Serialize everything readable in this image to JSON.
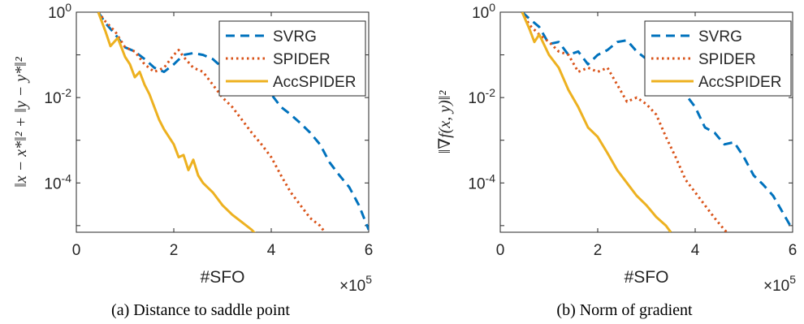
{
  "chart_data": [
    {
      "type": "line",
      "caption": "(a) Distance to saddle point",
      "xlabel": "#SFO",
      "x_multiplier": "×10",
      "x_multiplier_exp": "5",
      "ylabel": "‖x − x*‖² + ‖y − y*‖²",
      "xlim": [
        0,
        6
      ],
      "ylim": [
        7e-06,
        1
      ],
      "yscale": "log",
      "xticks": [
        "0",
        "2",
        "4",
        "6"
      ],
      "yticks": [
        {
          "base": "10",
          "exp": "-4",
          "value": 0.0001
        },
        {
          "base": "10",
          "exp": "-2",
          "value": 0.01
        },
        {
          "base": "10",
          "exp": "0",
          "value": 1
        }
      ],
      "legend_position": "top-right",
      "series": [
        {
          "name": "SVRG",
          "color": "#0072BD",
          "style": "dashed",
          "x": [
            0.45,
            0.6,
            0.8,
            1.0,
            1.2,
            1.4,
            1.6,
            1.8,
            2.0,
            2.2,
            2.4,
            2.6,
            2.8,
            3.0,
            3.2,
            3.4,
            3.6,
            3.8,
            4.0,
            4.2,
            4.4,
            4.6,
            4.8,
            5.0,
            5.2,
            5.4,
            5.6,
            5.8,
            6.0
          ],
          "y": [
            1.0,
            0.55,
            0.3,
            0.15,
            0.12,
            0.08,
            0.05,
            0.04,
            0.06,
            0.1,
            0.11,
            0.1,
            0.08,
            0.05,
            0.04,
            0.035,
            0.03,
            0.02,
            0.012,
            0.006,
            0.004,
            0.0025,
            0.0015,
            0.0008,
            0.0003,
            0.00015,
            8e-05,
            3e-05,
            8e-06
          ]
        },
        {
          "name": "SPIDER",
          "color": "#D95319",
          "style": "dotted",
          "x": [
            0.45,
            0.6,
            0.8,
            1.0,
            1.2,
            1.4,
            1.6,
            1.8,
            2.0,
            2.1,
            2.2,
            2.4,
            2.6,
            2.8,
            3.0,
            3.2,
            3.4,
            3.6,
            3.8,
            4.0,
            4.2,
            4.4,
            4.6,
            4.8,
            5.0,
            5.1
          ],
          "y": [
            1.0,
            0.6,
            0.35,
            0.15,
            0.12,
            0.06,
            0.04,
            0.05,
            0.1,
            0.13,
            0.09,
            0.05,
            0.04,
            0.02,
            0.01,
            0.006,
            0.003,
            0.0015,
            0.0008,
            0.0004,
            0.00015,
            6e-05,
            3e-05,
            1.5e-05,
            1e-05,
            7e-06
          ]
        },
        {
          "name": "AccSPIDER",
          "color": "#EDB120",
          "style": "solid",
          "x": [
            0.45,
            0.6,
            0.7,
            0.85,
            1.0,
            1.1,
            1.2,
            1.3,
            1.4,
            1.5,
            1.6,
            1.7,
            1.8,
            1.9,
            2.0,
            2.1,
            2.2,
            2.3,
            2.4,
            2.5,
            2.6,
            2.8,
            3.0,
            3.2,
            3.4,
            3.6,
            3.7
          ],
          "y": [
            1.0,
            0.35,
            0.16,
            0.25,
            0.09,
            0.06,
            0.03,
            0.04,
            0.02,
            0.012,
            0.006,
            0.003,
            0.0018,
            0.0012,
            0.0008,
            0.0004,
            0.00045,
            0.0002,
            0.00035,
            0.00015,
            0.0001,
            6e-05,
            3e-05,
            1.8e-05,
            1.2e-05,
            8e-06,
            6e-06
          ]
        }
      ]
    },
    {
      "type": "line",
      "caption": "(b) Norm of gradient",
      "xlabel": "#SFO",
      "x_multiplier": "×10",
      "x_multiplier_exp": "5",
      "ylabel": "‖∇f(x, y)‖²",
      "xlim": [
        0,
        6
      ],
      "ylim": [
        7e-06,
        1
      ],
      "yscale": "log",
      "xticks": [
        "0",
        "2",
        "4",
        "6"
      ],
      "yticks": [
        {
          "base": "10",
          "exp": "-4",
          "value": 0.0001
        },
        {
          "base": "10",
          "exp": "-2",
          "value": 0.01
        },
        {
          "base": "10",
          "exp": "0",
          "value": 1
        }
      ],
      "legend_position": "top-right",
      "series": [
        {
          "name": "SVRG",
          "color": "#0072BD",
          "style": "dashed",
          "x": [
            0.45,
            0.6,
            0.8,
            1.0,
            1.2,
            1.4,
            1.6,
            1.8,
            2.0,
            2.2,
            2.4,
            2.6,
            2.8,
            3.0,
            3.2,
            3.4,
            3.6,
            3.8,
            4.0,
            4.2,
            4.4,
            4.6,
            4.8,
            5.0,
            5.2,
            5.4,
            5.6,
            5.8,
            6.0
          ],
          "y": [
            1.0,
            0.7,
            0.45,
            0.18,
            0.2,
            0.1,
            0.12,
            0.06,
            0.1,
            0.13,
            0.2,
            0.22,
            0.12,
            0.08,
            0.09,
            0.07,
            0.04,
            0.012,
            0.006,
            0.002,
            0.0015,
            0.0008,
            0.0009,
            0.0004,
            0.00015,
            9e-05,
            5e-05,
            2e-05,
            8e-06
          ]
        },
        {
          "name": "SPIDER",
          "color": "#D95319",
          "style": "dotted",
          "x": [
            0.45,
            0.6,
            0.8,
            1.0,
            1.2,
            1.4,
            1.6,
            1.8,
            2.0,
            2.2,
            2.4,
            2.6,
            2.8,
            3.0,
            3.2,
            3.4,
            3.6,
            3.8,
            4.0,
            4.2,
            4.4,
            4.6,
            4.65
          ],
          "y": [
            1.0,
            0.5,
            0.3,
            0.2,
            0.12,
            0.1,
            0.04,
            0.05,
            0.04,
            0.05,
            0.02,
            0.008,
            0.01,
            0.007,
            0.004,
            0.0012,
            0.0004,
            0.00012,
            6e-05,
            3e-05,
            1.5e-05,
            8e-06,
            7e-06
          ]
        },
        {
          "name": "AccSPIDER",
          "color": "#EDB120",
          "style": "solid",
          "x": [
            0.45,
            0.6,
            0.7,
            0.8,
            1.0,
            1.2,
            1.4,
            1.6,
            1.8,
            2.0,
            2.2,
            2.4,
            2.6,
            2.8,
            3.0,
            3.2,
            3.4,
            3.5
          ],
          "y": [
            1.0,
            0.4,
            0.2,
            0.3,
            0.1,
            0.05,
            0.015,
            0.006,
            0.002,
            0.0012,
            0.0005,
            0.0002,
            0.0001,
            5e-05,
            3e-05,
            1.6e-05,
            1e-05,
            7e-06
          ]
        }
      ]
    }
  ]
}
